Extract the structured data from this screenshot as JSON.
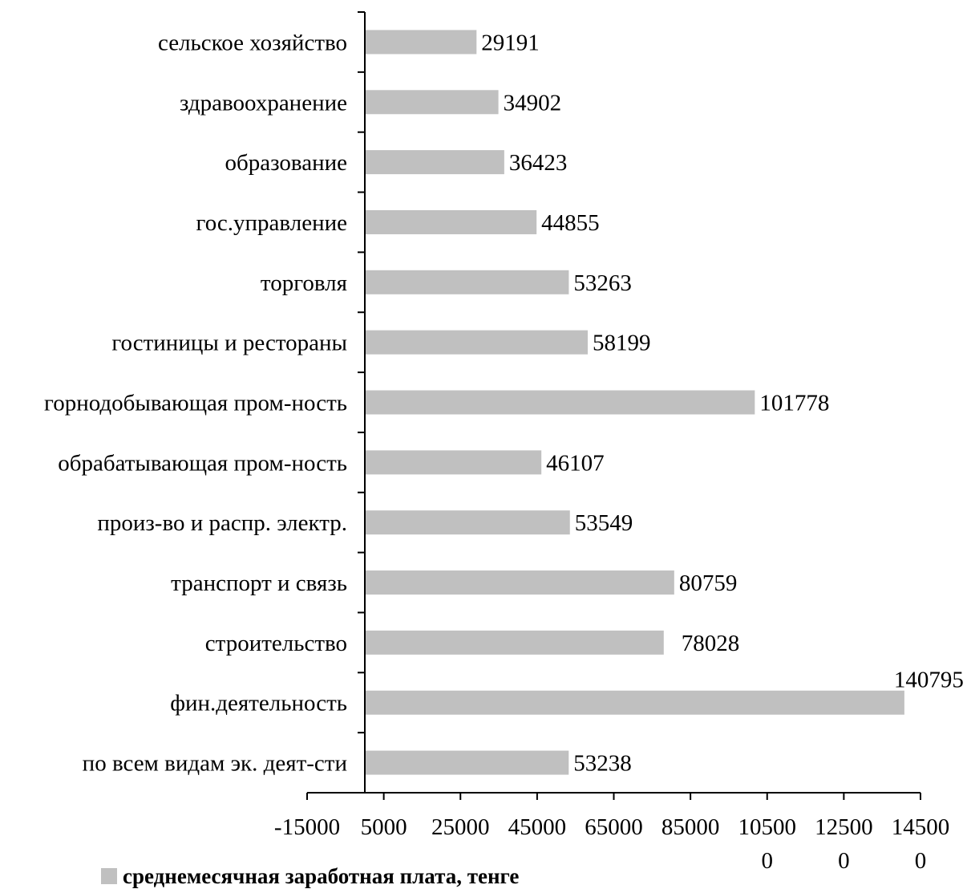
{
  "chart_data": {
    "type": "bar",
    "orientation": "horizontal",
    "categories": [
      "сельское хозяйство",
      "здравоохранение",
      "образование",
      "гос.управление",
      "торговля",
      "гостиницы и рестораны",
      "горнодобывающая пром-ность",
      "обрабатывающая пром-ность",
      "произ-во и распр. электр.",
      "транспорт и связь",
      "строительство",
      "фин.деятельность",
      "по всем видам эк. деят-сти"
    ],
    "series": [
      {
        "name": "среднемесячная заработная плата, тенге",
        "values": [
          29191,
          34902,
          36423,
          44855,
          53263,
          58199,
          101778,
          46107,
          53549,
          80759,
          78028,
          140795,
          53238
        ]
      }
    ],
    "value_labels": [
      "29191",
      "34902",
      "36423",
      "44855",
      "53263",
      "58199",
      "101778",
      "46107",
      "53549",
      "80759",
      "78028",
      "140795",
      "53238"
    ],
    "xlim": [
      -15000,
      145000
    ],
    "x_ticks": [
      -15000,
      5000,
      25000,
      45000,
      65000,
      85000,
      105000,
      125000,
      145000
    ],
    "x_tick_labels": [
      [
        "-15000"
      ],
      [
        "5000"
      ],
      [
        "25000"
      ],
      [
        "45000"
      ],
      [
        "65000"
      ],
      [
        "85000"
      ],
      [
        "10500",
        "0"
      ],
      [
        "12500",
        "0"
      ],
      [
        "14500",
        "0"
      ]
    ],
    "grid": false,
    "legend_position": "bottom-left",
    "bar_color": "#c0c0c0",
    "title": "",
    "xlabel": "",
    "ylabel": ""
  }
}
